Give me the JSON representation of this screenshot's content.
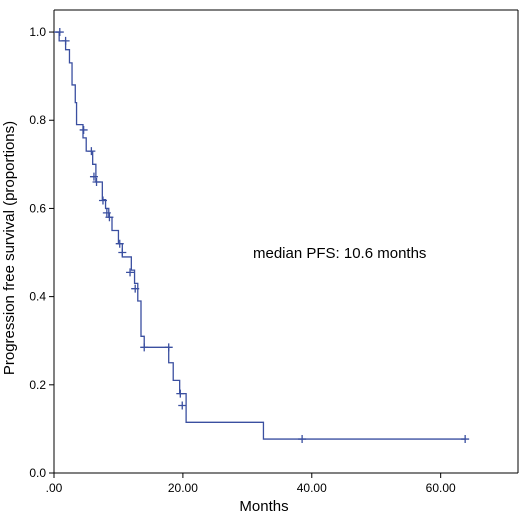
{
  "chart_data": {
    "type": "line",
    "title": "",
    "xlabel": "Months",
    "ylabel": "Progression free survival (proportions)",
    "xlim": [
      0,
      72
    ],
    "ylim": [
      0,
      1.05
    ],
    "x_ticks": [
      {
        "value": 0,
        "label": ".00"
      },
      {
        "value": 20,
        "label": "20.00"
      },
      {
        "value": 40,
        "label": "40.00"
      },
      {
        "value": 60,
        "label": "60.00"
      }
    ],
    "y_ticks": [
      {
        "value": 0,
        "label": "0.0"
      },
      {
        "value": 0.2,
        "label": "0.2"
      },
      {
        "value": 0.4,
        "label": "0.4"
      },
      {
        "value": 0.6,
        "label": "0.6"
      },
      {
        "value": 0.8,
        "label": "0.8"
      },
      {
        "value": 1.0,
        "label": "1.0"
      }
    ],
    "annotation": "median PFS: 10.6 months",
    "grid": false,
    "line_color": "#3a4fa0",
    "series": [
      {
        "steps": [
          [
            0,
            1.0
          ],
          [
            0.8,
            1.0
          ],
          [
            0.8,
            0.98
          ],
          [
            1.8,
            0.98
          ],
          [
            1.8,
            0.96
          ],
          [
            2.4,
            0.96
          ],
          [
            2.4,
            0.93
          ],
          [
            2.8,
            0.93
          ],
          [
            2.8,
            0.88
          ],
          [
            3.3,
            0.88
          ],
          [
            3.3,
            0.84
          ],
          [
            3.5,
            0.84
          ],
          [
            3.5,
            0.79
          ],
          [
            4.5,
            0.79
          ],
          [
            4.5,
            0.76
          ],
          [
            5.0,
            0.76
          ],
          [
            5.0,
            0.73
          ],
          [
            6.0,
            0.73
          ],
          [
            6.0,
            0.7
          ],
          [
            6.5,
            0.7
          ],
          [
            6.5,
            0.66
          ],
          [
            7.5,
            0.66
          ],
          [
            7.5,
            0.62
          ],
          [
            8.0,
            0.62
          ],
          [
            8.0,
            0.6
          ],
          [
            8.5,
            0.6
          ],
          [
            8.5,
            0.58
          ],
          [
            9.0,
            0.58
          ],
          [
            9.0,
            0.55
          ],
          [
            10.0,
            0.55
          ],
          [
            10.0,
            0.52
          ],
          [
            10.6,
            0.52
          ],
          [
            10.6,
            0.49
          ],
          [
            12.0,
            0.49
          ],
          [
            12.0,
            0.46
          ],
          [
            12.5,
            0.46
          ],
          [
            12.5,
            0.43
          ],
          [
            13.0,
            0.43
          ],
          [
            13.0,
            0.39
          ],
          [
            13.5,
            0.39
          ],
          [
            13.5,
            0.31
          ],
          [
            14.0,
            0.31
          ],
          [
            14.0,
            0.285
          ],
          [
            17.8,
            0.285
          ],
          [
            17.8,
            0.25
          ],
          [
            18.5,
            0.25
          ],
          [
            18.5,
            0.21
          ],
          [
            19.5,
            0.21
          ],
          [
            19.5,
            0.18
          ],
          [
            20.5,
            0.18
          ],
          [
            20.5,
            0.115
          ],
          [
            32.5,
            0.115
          ],
          [
            32.5,
            0.077
          ],
          [
            63.8,
            0.077
          ]
        ],
        "censored": [
          [
            0.9,
            1.0
          ],
          [
            1.8,
            0.98
          ],
          [
            4.6,
            0.778
          ],
          [
            5.8,
            0.73
          ],
          [
            6.2,
            0.672
          ],
          [
            6.6,
            0.66
          ],
          [
            7.6,
            0.618
          ],
          [
            8.2,
            0.59
          ],
          [
            8.6,
            0.58
          ],
          [
            10.2,
            0.52
          ],
          [
            10.6,
            0.5
          ],
          [
            11.8,
            0.455
          ],
          [
            12.6,
            0.418
          ],
          [
            14.0,
            0.285
          ],
          [
            17.8,
            0.285
          ],
          [
            19.6,
            0.18
          ],
          [
            19.9,
            0.153
          ],
          [
            38.5,
            0.077
          ],
          [
            63.8,
            0.077
          ]
        ]
      }
    ]
  }
}
